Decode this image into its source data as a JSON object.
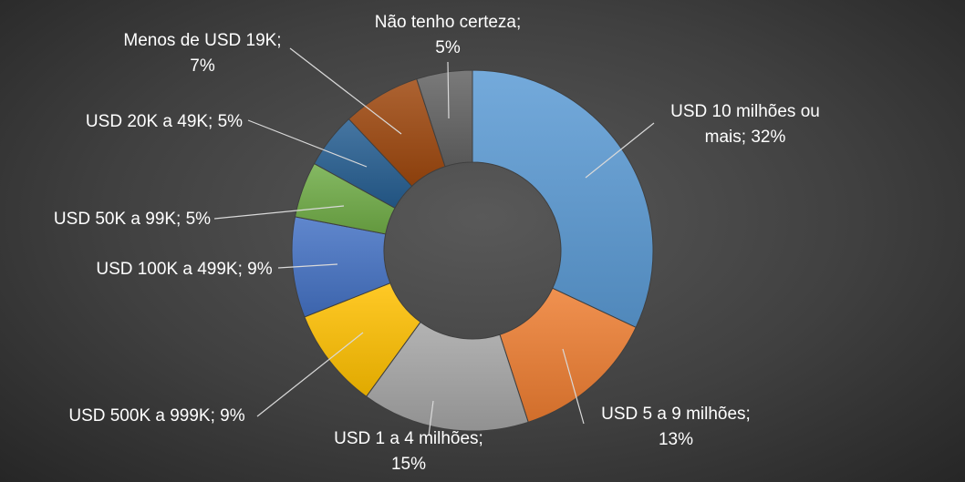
{
  "chart_data": {
    "type": "pie",
    "subtype": "doughnut",
    "title": "",
    "start": "12 o'clock",
    "direction": "clockwise",
    "slices": [
      {
        "label": "USD 10 milhões ou mais",
        "value": 32,
        "data_label": [
          "USD 10 milhões ou",
          "mais; 32%"
        ],
        "color": "#5b9bd5"
      },
      {
        "label": "USD 5 a 9 milhões",
        "value": 13,
        "data_label": [
          "USD 5 a 9 milhões;",
          "13%"
        ],
        "color": "#ed7d31"
      },
      {
        "label": "USD 1 a 4 milhões",
        "value": 15,
        "data_label": [
          "USD 1 a 4 milhões;",
          "15%"
        ],
        "color": "#a5a5a5"
      },
      {
        "label": "USD 500K a 999K",
        "value": 9,
        "data_label": [
          "USD 500K a 999K; 9%"
        ],
        "color": "#ffc000"
      },
      {
        "label": "USD 100K a 499K",
        "value": 9,
        "data_label": [
          "USD 100K a 499K; 9%"
        ],
        "color": "#4472c4"
      },
      {
        "label": "USD 50K a 99K",
        "value": 5,
        "data_label": [
          "USD 50K a 99K; 5%"
        ],
        "color": "#70ad47"
      },
      {
        "label": "USD 20K a 49K",
        "value": 5,
        "data_label": [
          "USD 20K a 49K; 5%"
        ],
        "color": "#255e91"
      },
      {
        "label": "Menos de USD 19K",
        "value": 7,
        "data_label": [
          "Menos de USD 19K;",
          "7%"
        ],
        "color": "#9e480e"
      },
      {
        "label": "Não tenho certeza",
        "value": 5,
        "data_label": [
          "Não tenho certeza;",
          "5%"
        ],
        "color": "#636363"
      }
    ]
  }
}
